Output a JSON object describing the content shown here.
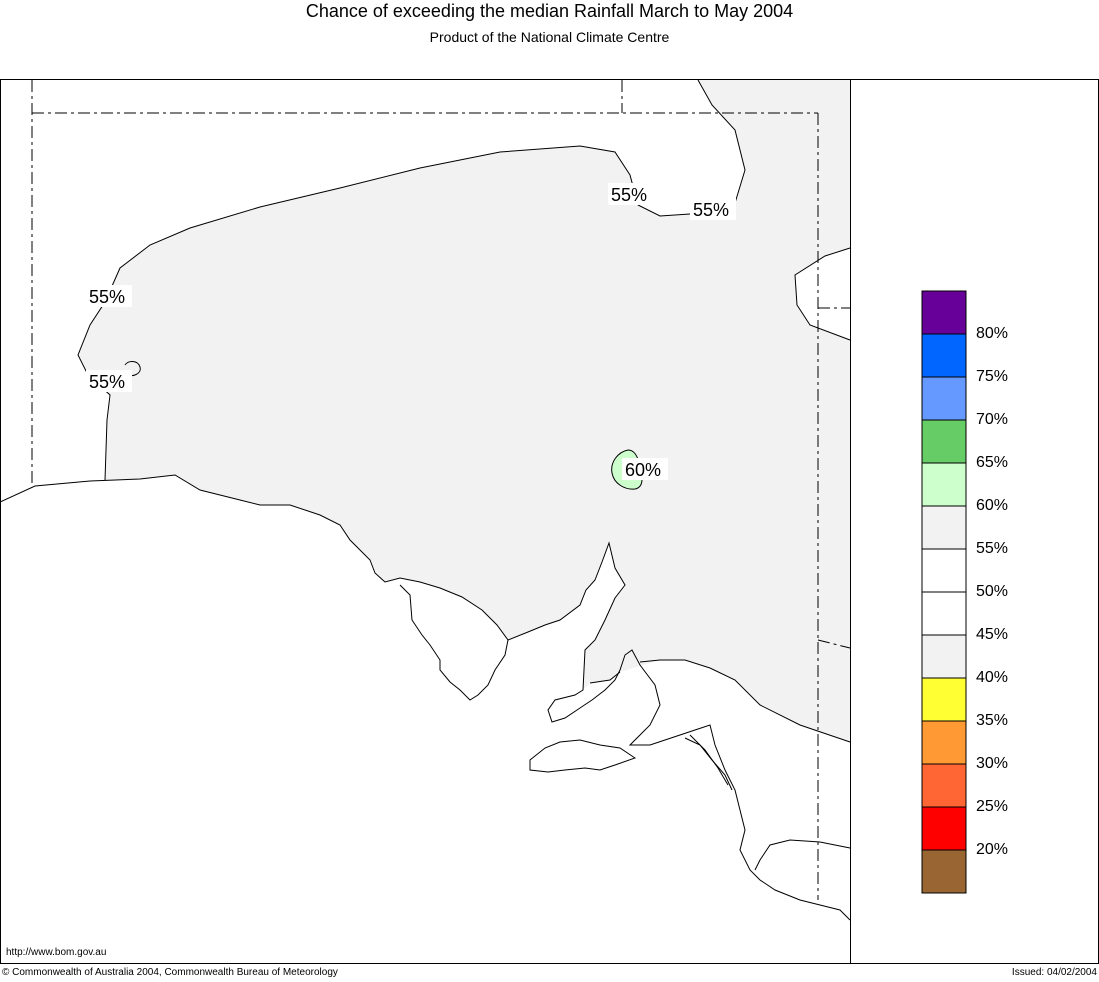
{
  "title": "Chance of exceeding the median Rainfall March to May 2004",
  "subtitle": "Product of the National Climate Centre",
  "map_labels": [
    "55%",
    "55%",
    "55%",
    "55%",
    "60%"
  ],
  "legend": {
    "labels": [
      "80%",
      "75%",
      "70%",
      "65%",
      "60%",
      "55%",
      "50%",
      "45%",
      "40%",
      "35%",
      "30%",
      "25%",
      "20%"
    ],
    "colors": [
      "#660099",
      "#0066ff",
      "#6699ff",
      "#66cc66",
      "#ccffcc",
      "#f2f2f2",
      "#ffffff",
      "#ffffff",
      "#f2f2f2",
      "#ffff33",
      "#ff9933",
      "#ff6633",
      "#ff0000",
      "#996633"
    ]
  },
  "colors": {
    "shade_55": "#f2f2f2",
    "shade_60": "#ccffcc"
  },
  "footer": {
    "url": "http://www.bom.gov.au",
    "copyright": "© Commonwealth of Australia 2004, Commonwealth Bureau of Meteorology",
    "issued": "Issued: 04/02/2004"
  }
}
